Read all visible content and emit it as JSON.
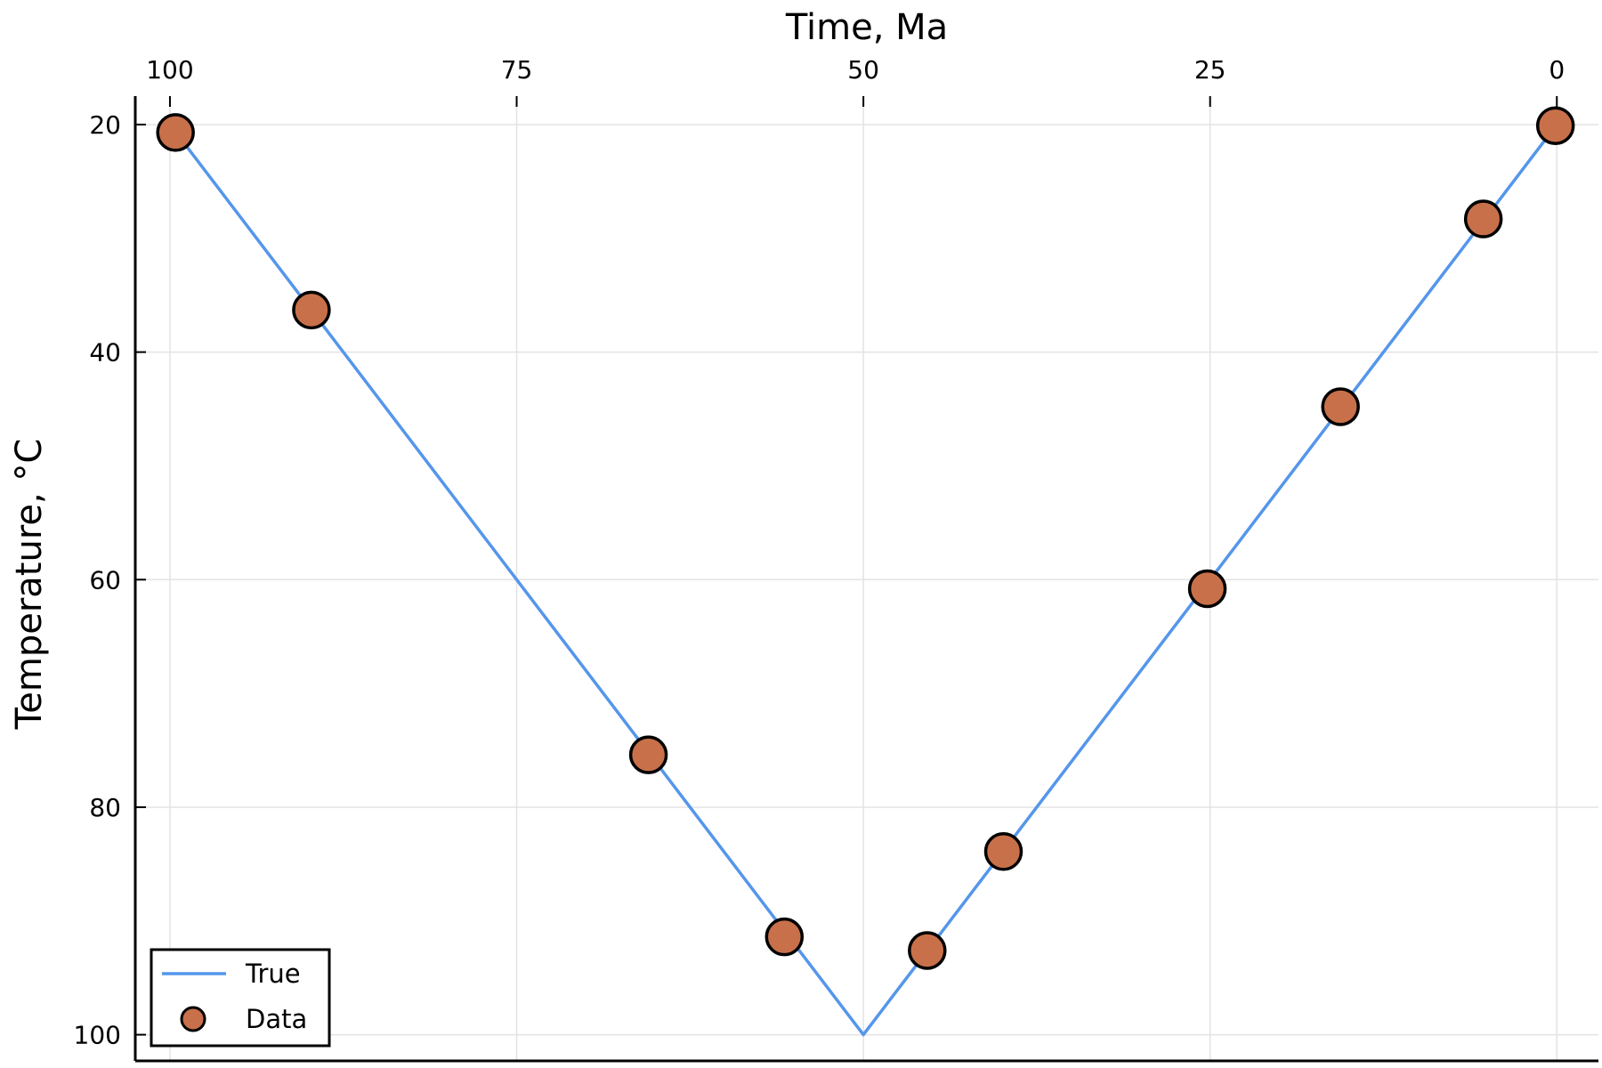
{
  "chart_data": {
    "type": "scatter",
    "xlabel": "Time, Ma",
    "ylabel": "Temperature, °C",
    "x_axis_position": "top",
    "x_reversed": true,
    "y_reversed": true,
    "xlim": [
      102.5,
      -3
    ],
    "ylim": [
      17.5,
      102.3
    ],
    "xticks": [
      100,
      75,
      50,
      25,
      0
    ],
    "yticks": [
      20,
      40,
      60,
      80,
      100
    ],
    "grid": true,
    "legend_position": "bottom-left",
    "series": [
      {
        "name": "True",
        "kind": "line",
        "color": "#5596eb",
        "x": [
          100,
          50,
          0
        ],
        "y": [
          20,
          100,
          20
        ]
      },
      {
        "name": "Data",
        "kind": "scatter",
        "color": "#c8704a",
        "edge_color": "#000000",
        "x": [
          99.6,
          89.8,
          65.5,
          55.7,
          45.4,
          39.9,
          25.2,
          15.6,
          5.3,
          0.1
        ],
        "y": [
          20.7,
          36.3,
          75.4,
          91.4,
          92.6,
          83.9,
          60.8,
          44.8,
          28.3,
          20.1
        ]
      }
    ]
  }
}
